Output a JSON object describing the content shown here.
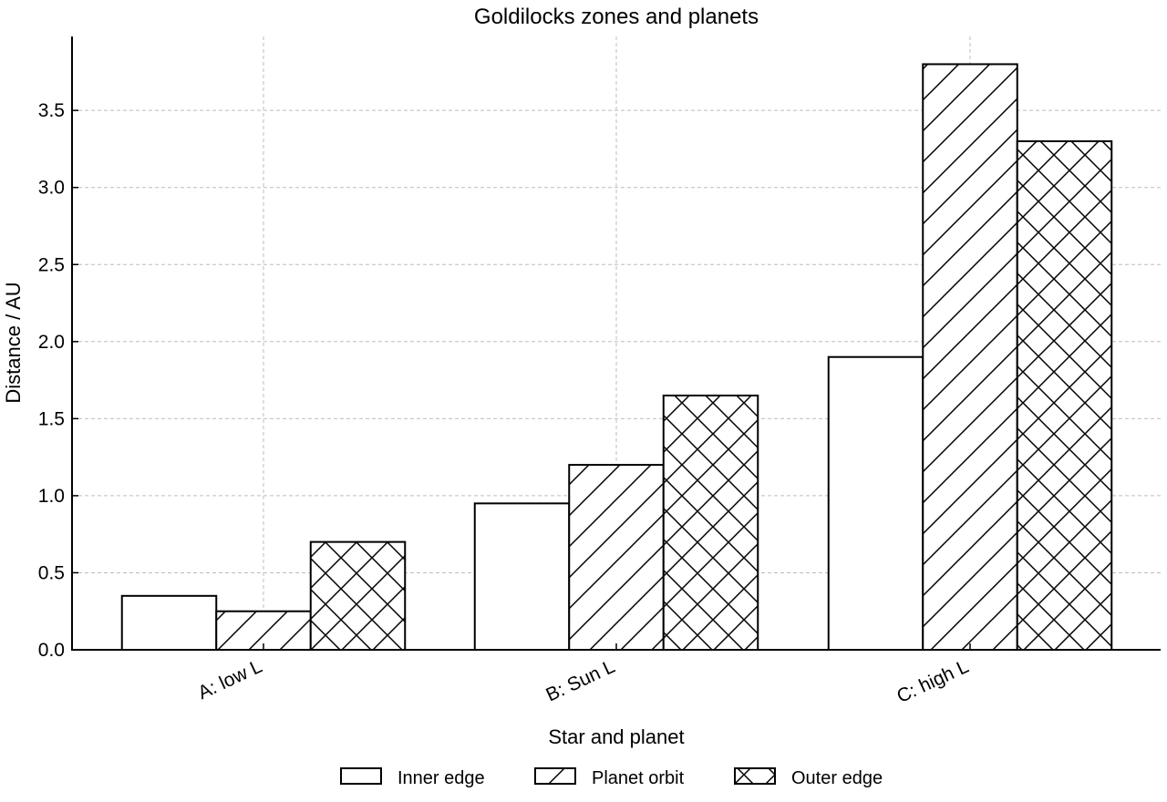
{
  "chart_data": {
    "type": "bar",
    "title": "Goldilocks zones and planets",
    "xlabel": "Star and planet",
    "ylabel": "Distance / AU",
    "categories": [
      "A: low L",
      "B: Sun L",
      "C: high L"
    ],
    "series": [
      {
        "name": "Inner edge",
        "values": [
          0.35,
          0.95,
          1.9
        ],
        "pattern": "none"
      },
      {
        "name": "Planet orbit",
        "values": [
          0.25,
          1.2,
          3.8
        ],
        "pattern": "diagonal"
      },
      {
        "name": "Outer edge",
        "values": [
          0.7,
          1.65,
          3.3
        ],
        "pattern": "crosshatch"
      }
    ],
    "ylim": [
      0,
      3.98
    ],
    "yticks": [
      "0.0",
      "0.5",
      "1.0",
      "1.5",
      "2.0",
      "2.5",
      "3.0",
      "3.5"
    ],
    "grid": true,
    "legend_position": "bottom-center",
    "colors": {
      "bar_fill": "#ffffff",
      "bar_edge": "#000000",
      "grid": "#bdbdbd"
    }
  }
}
